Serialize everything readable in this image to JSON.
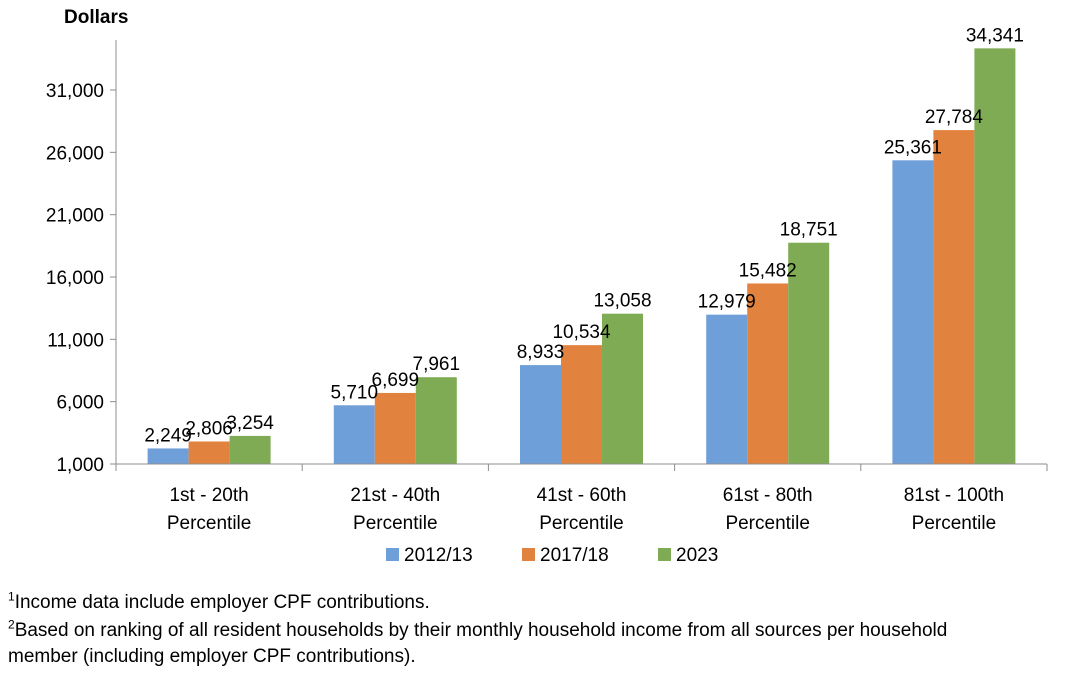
{
  "chart_data": {
    "type": "bar",
    "ylabel": "Dollars",
    "xlabel": "",
    "ylim": [
      1000,
      35000
    ],
    "yticks": [
      1000,
      6000,
      11000,
      16000,
      21000,
      26000,
      31000
    ],
    "ytick_labels": [
      "1,000",
      "6,000",
      "11,000",
      "16,000",
      "21,000",
      "26,000",
      "31,000"
    ],
    "categories": [
      [
        "1st - 20th",
        "Percentile"
      ],
      [
        "21st - 40th",
        "Percentile"
      ],
      [
        "41st - 60th",
        "Percentile"
      ],
      [
        "61st - 80th",
        "Percentile"
      ],
      [
        "81st - 100th",
        "Percentile"
      ]
    ],
    "series": [
      {
        "name": "2012/13",
        "color": "#6f9fd8",
        "values": [
          2249,
          5710,
          8933,
          12979,
          25361
        ],
        "labels": [
          "2,249",
          "5,710",
          "8,933",
          "12,979",
          "25,361"
        ]
      },
      {
        "name": "2017/18",
        "color": "#e2823f",
        "values": [
          2806,
          6699,
          10534,
          15482,
          27784
        ],
        "labels": [
          "2,806",
          "6,699",
          "10,534",
          "15,482",
          "27,784"
        ]
      },
      {
        "name": "2023",
        "color": "#7fab55",
        "values": [
          3254,
          7961,
          13058,
          18751,
          34341
        ],
        "labels": [
          "3,254",
          "7,961",
          "13,058",
          "18,751",
          "34,341"
        ]
      }
    ],
    "legend_position": "bottom",
    "grid": false
  },
  "footnotes": [
    {
      "mark": "1",
      "text": "Income data include employer CPF contributions."
    },
    {
      "mark": "2",
      "text": "Based on ranking of all resident households by their monthly household income from all sources per household",
      "text2": "member (including employer CPF contributions)."
    }
  ]
}
